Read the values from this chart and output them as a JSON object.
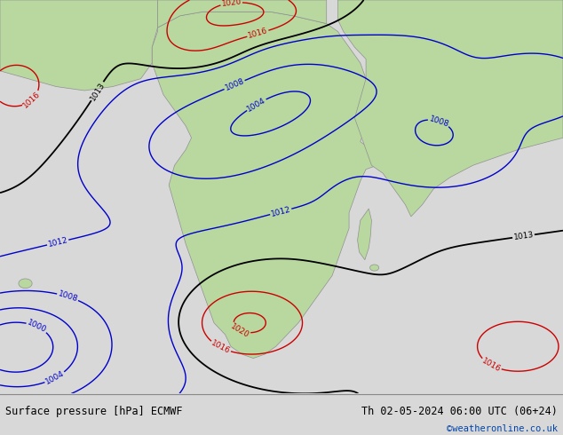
{
  "title_left": "Surface pressure [hPa] ECMWF",
  "title_right": "Th 02-05-2024 06:00 UTC (06+24)",
  "watermark": "©weatheronline.co.uk",
  "bg_color": "#c8dff0",
  "land_color": "#b8d8a0",
  "strip_color": "#d8d8d8",
  "figsize": [
    6.34,
    4.9
  ],
  "dpi": 100,
  "watermark_color": "#0044aa"
}
